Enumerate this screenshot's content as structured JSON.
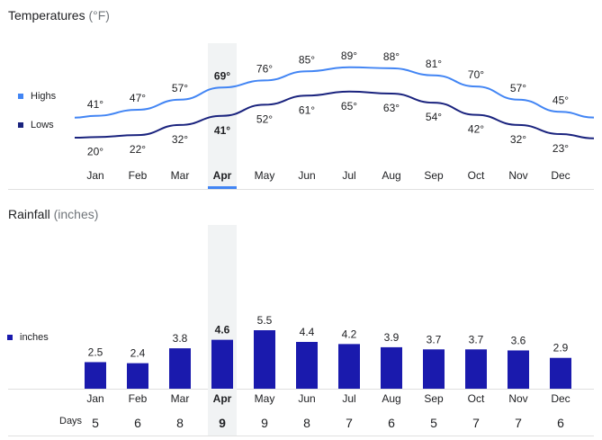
{
  "temperature": {
    "title": "Temperatures",
    "unit": "(°F)",
    "legend_highs": "Highs",
    "legend_lows": "Lows",
    "colors": {
      "highs": "#4285f4",
      "lows": "#1a237e",
      "selected_bg": "#f1f3f4",
      "selected_bar": "#4285f4"
    }
  },
  "rainfall": {
    "title": "Rainfall",
    "unit": "(inches)",
    "legend_series": "inches",
    "colors": {
      "bar": "#1a1aad"
    }
  },
  "days_label": "Days",
  "selected_month": "Apr",
  "chart_data": [
    {
      "type": "line",
      "title": "Temperatures (°F)",
      "categories": [
        "Jan",
        "Feb",
        "Mar",
        "Apr",
        "May",
        "Jun",
        "Jul",
        "Aug",
        "Sep",
        "Oct",
        "Nov",
        "Dec"
      ],
      "series": [
        {
          "name": "Highs",
          "values": [
            41,
            47,
            57,
            69,
            76,
            85,
            89,
            88,
            81,
            70,
            57,
            45
          ]
        },
        {
          "name": "Lows",
          "values": [
            20,
            22,
            32,
            41,
            52,
            61,
            65,
            63,
            54,
            42,
            32,
            23
          ]
        }
      ],
      "value_suffix": "°",
      "ylim": [
        15,
        95
      ],
      "legend": "left"
    },
    {
      "type": "bar",
      "title": "Rainfall (inches)",
      "categories": [
        "Jan",
        "Feb",
        "Mar",
        "Apr",
        "May",
        "Jun",
        "Jul",
        "Aug",
        "Sep",
        "Oct",
        "Nov",
        "Dec"
      ],
      "series": [
        {
          "name": "inches",
          "values": [
            2.5,
            2.4,
            3.8,
            4.6,
            5.5,
            4.4,
            4.2,
            3.9,
            3.7,
            3.7,
            3.6,
            2.9
          ]
        }
      ],
      "days": [
        5,
        6,
        8,
        9,
        9,
        8,
        7,
        6,
        5,
        7,
        7,
        6
      ],
      "ylim": [
        0,
        6
      ],
      "legend": "left"
    }
  ]
}
